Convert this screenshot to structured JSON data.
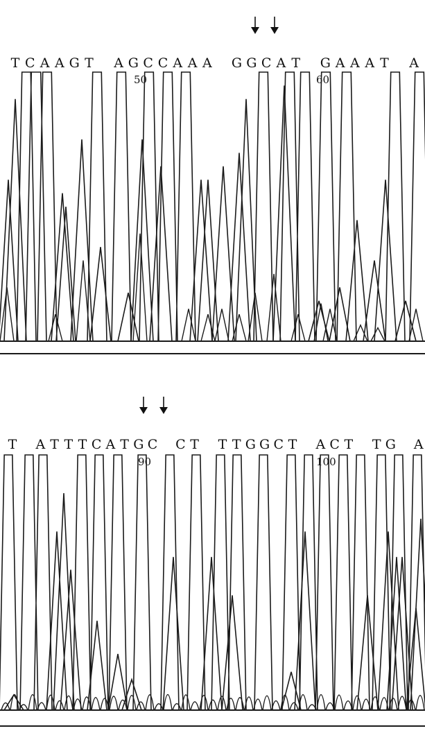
{
  "chart_data": [
    {
      "type": "line",
      "title": "",
      "sequence": [
        "T",
        "C",
        "A",
        "A",
        "G",
        "T",
        "",
        "A",
        "G",
        "C",
        "C",
        "A",
        "A",
        "A",
        "",
        "G",
        "G",
        "C",
        "A",
        "T",
        "",
        "G",
        "A",
        "A",
        "A",
        "T",
        "",
        "A"
      ],
      "position_labels": [
        {
          "text": "50",
          "index": 12
        },
        {
          "text": "60",
          "index": 24
        }
      ],
      "mutation_arrows": 2,
      "baseline": true,
      "xlabel": "",
      "ylabel": ""
    },
    {
      "type": "line",
      "title": "",
      "sequence": [
        "T",
        "",
        "A",
        "T",
        "T",
        "T",
        "C",
        "A",
        "T",
        "G",
        "C",
        "",
        "C",
        "T",
        "",
        "T",
        "T",
        "G",
        "G",
        "C",
        "T",
        "",
        "A",
        "C",
        "T",
        "",
        "T",
        "G",
        "",
        "A"
      ],
      "position_labels": [
        {
          "text": "90",
          "index": 11
        },
        {
          "text": "100",
          "index": 25
        }
      ],
      "mutation_arrows": 2,
      "baseline": true,
      "xlabel": "",
      "ylabel": ""
    }
  ],
  "top": {
    "seq_line": "TCAAGT AGCCAAA GGCATG AAATA",
    "pos1": "50",
    "pos2": "60"
  },
  "bottom": {
    "seq_line": "TATTTCATGCCTTTGGCTACT TGA",
    "pos1": "90",
    "pos2": "100"
  },
  "colors": {
    "trace": "#1a1a1a",
    "background": "#ffffff"
  },
  "icons": {
    "arrow": "down-arrow-icon"
  }
}
